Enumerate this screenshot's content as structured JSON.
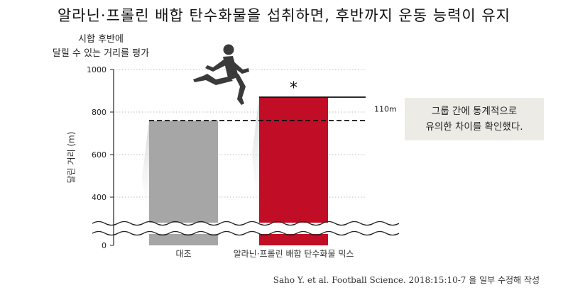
{
  "title": "알라닌·프롤린 배합 탄수화물을 섭취하면, 후반까지 운동 능력이 유지",
  "ylabel_top_line1": "시합 후반에",
  "ylabel_top_line2": "달릴 수 있는 거리를 평가",
  "note_line1": "그룹 간에 통계적으로",
  "note_line2": "유의한 차이를 확인했다.",
  "source": "Saho Y. et al. Football Science. 2018:15:10-7 을 일부 수정해 작성",
  "icons": {
    "runner": "runner-silhouette-icon"
  },
  "chart_data": {
    "type": "bar",
    "categories": [
      "대조",
      "알라닌·프롤린 배합 탄수화물 믹스"
    ],
    "values": [
      760,
      870
    ],
    "colors": [
      "#a6a6a6",
      "#c10d25"
    ],
    "ylabel": "달린 거리 (m)",
    "yticks": [
      0,
      400,
      600,
      800,
      1000
    ],
    "ylim": [
      0,
      1000
    ],
    "axis_break": true,
    "significance_marker": "*",
    "difference_label": "110m",
    "grid": "dotted"
  }
}
